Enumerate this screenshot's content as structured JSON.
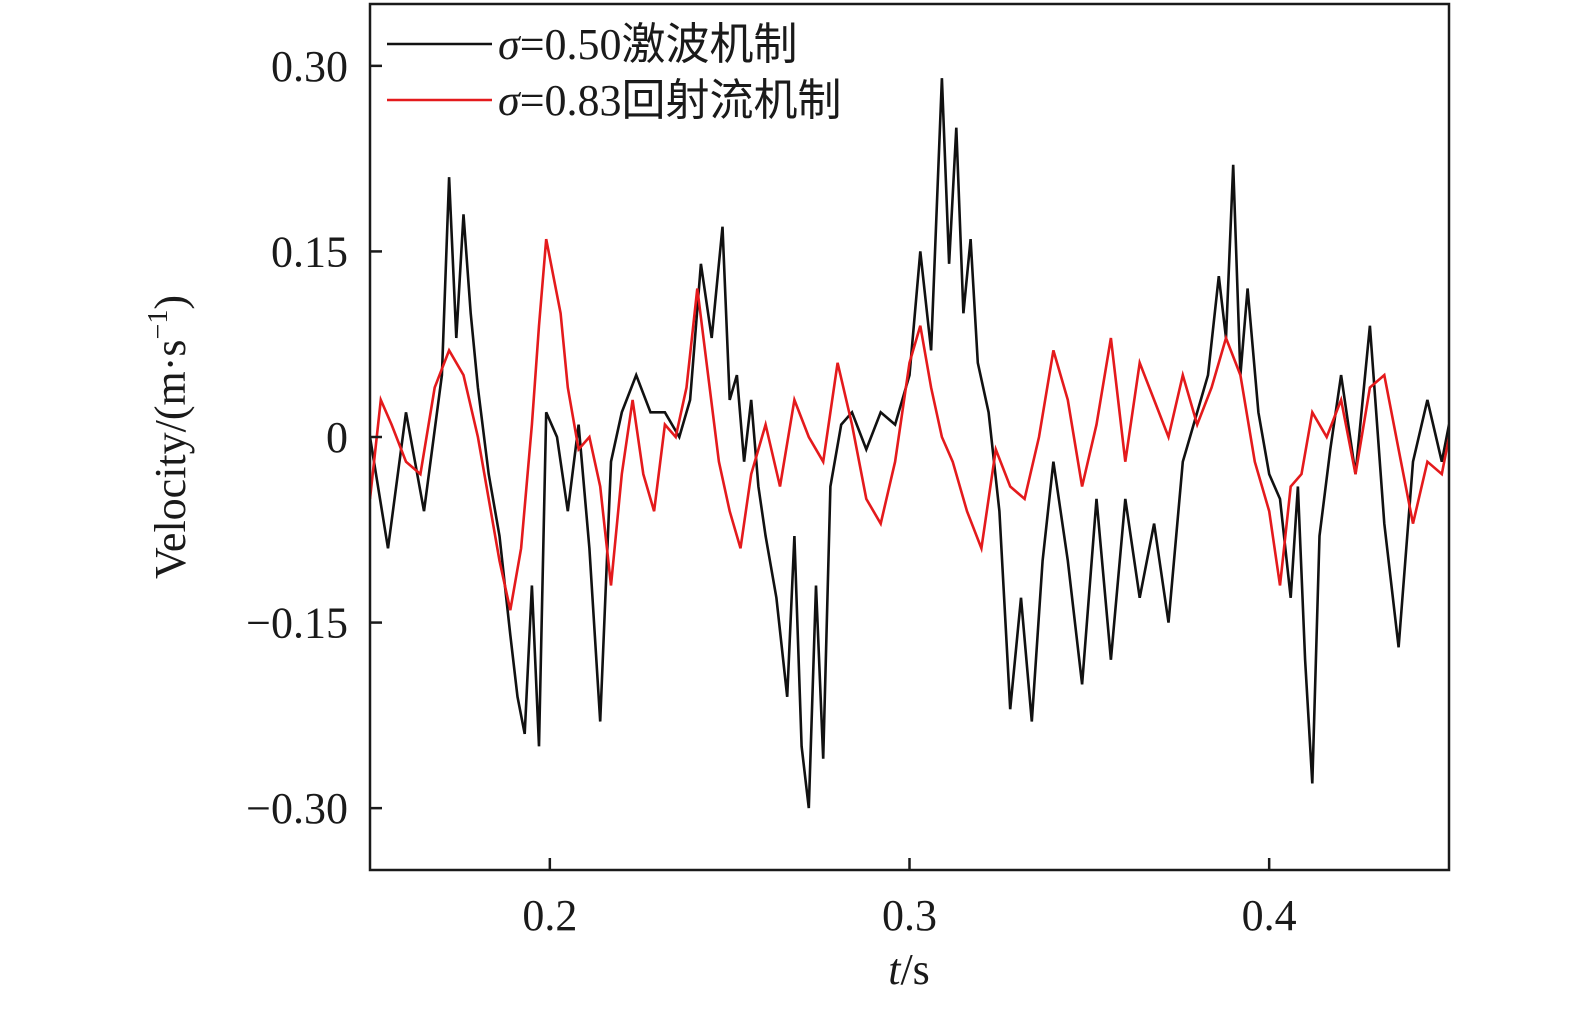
{
  "chart_data": {
    "type": "line",
    "xlabel": {
      "italic": "t",
      "rest": "/s"
    },
    "ylabel": {
      "main": "Velocity/(m·s",
      "sup": "−1",
      "close": ")"
    },
    "xlim": [
      0.15,
      0.45
    ],
    "ylim": [
      -0.35,
      0.35
    ],
    "x_ticks": [
      {
        "value": 0.2,
        "label": "0.2"
      },
      {
        "value": 0.3,
        "label": "0.3"
      },
      {
        "value": 0.4,
        "label": "0.4"
      }
    ],
    "y_ticks": [
      {
        "value": 0.3,
        "label": "0.30"
      },
      {
        "value": 0.15,
        "label": "0.15"
      },
      {
        "value": 0,
        "label": "0"
      },
      {
        "value": -0.15,
        "label": "−0.15"
      },
      {
        "value": -0.3,
        "label": "−0.30"
      }
    ],
    "grid": false,
    "legend_position": "top-left",
    "series": [
      {
        "name": "σ=0.50激波机制",
        "legend_symbol": "σ",
        "legend_text": "=0.50激波机制",
        "color": "#111111",
        "x": [
          0.15,
          0.155,
          0.16,
          0.165,
          0.17,
          0.172,
          0.174,
          0.176,
          0.178,
          0.18,
          0.183,
          0.186,
          0.189,
          0.191,
          0.193,
          0.195,
          0.197,
          0.199,
          0.202,
          0.205,
          0.208,
          0.211,
          0.214,
          0.217,
          0.22,
          0.224,
          0.228,
          0.232,
          0.236,
          0.239,
          0.242,
          0.245,
          0.248,
          0.25,
          0.252,
          0.254,
          0.256,
          0.258,
          0.26,
          0.263,
          0.266,
          0.268,
          0.27,
          0.272,
          0.274,
          0.276,
          0.278,
          0.281,
          0.284,
          0.288,
          0.292,
          0.296,
          0.3,
          0.303,
          0.306,
          0.309,
          0.311,
          0.313,
          0.315,
          0.317,
          0.319,
          0.322,
          0.325,
          0.328,
          0.331,
          0.334,
          0.337,
          0.34,
          0.344,
          0.348,
          0.352,
          0.356,
          0.36,
          0.364,
          0.368,
          0.372,
          0.376,
          0.38,
          0.383,
          0.386,
          0.388,
          0.39,
          0.392,
          0.394,
          0.397,
          0.4,
          0.403,
          0.406,
          0.408,
          0.41,
          0.412,
          0.414,
          0.417,
          0.42,
          0.424,
          0.428,
          0.432,
          0.436,
          0.44,
          0.444,
          0.448,
          0.45
        ],
        "y": [
          0.0,
          -0.09,
          0.02,
          -0.06,
          0.05,
          0.21,
          0.08,
          0.18,
          0.1,
          0.04,
          -0.03,
          -0.08,
          -0.16,
          -0.21,
          -0.24,
          -0.12,
          -0.25,
          0.02,
          0.0,
          -0.06,
          0.01,
          -0.09,
          -0.23,
          -0.02,
          0.02,
          0.05,
          0.02,
          0.02,
          0.0,
          0.03,
          0.14,
          0.08,
          0.17,
          0.03,
          0.05,
          -0.02,
          0.03,
          -0.04,
          -0.08,
          -0.13,
          -0.21,
          -0.08,
          -0.25,
          -0.3,
          -0.12,
          -0.26,
          -0.04,
          0.01,
          0.02,
          -0.01,
          0.02,
          0.01,
          0.05,
          0.15,
          0.07,
          0.29,
          0.14,
          0.25,
          0.1,
          0.16,
          0.06,
          0.02,
          -0.06,
          -0.22,
          -0.13,
          -0.23,
          -0.1,
          -0.02,
          -0.1,
          -0.2,
          -0.05,
          -0.18,
          -0.05,
          -0.13,
          -0.07,
          -0.15,
          -0.02,
          0.02,
          0.05,
          0.13,
          0.08,
          0.22,
          0.05,
          0.12,
          0.02,
          -0.03,
          -0.05,
          -0.13,
          -0.04,
          -0.18,
          -0.28,
          -0.08,
          -0.01,
          0.05,
          -0.03,
          0.09,
          -0.07,
          -0.17,
          -0.02,
          0.03,
          -0.02,
          0.01
        ]
      },
      {
        "name": "σ=0.83回射流机制",
        "legend_symbol": "σ",
        "legend_text": "=0.83回射流机制",
        "color": "#e41a1c",
        "x": [
          0.15,
          0.153,
          0.156,
          0.16,
          0.164,
          0.168,
          0.172,
          0.176,
          0.18,
          0.183,
          0.186,
          0.189,
          0.192,
          0.195,
          0.197,
          0.199,
          0.201,
          0.203,
          0.205,
          0.208,
          0.211,
          0.214,
          0.217,
          0.22,
          0.223,
          0.226,
          0.229,
          0.232,
          0.235,
          0.238,
          0.241,
          0.244,
          0.247,
          0.25,
          0.253,
          0.256,
          0.26,
          0.264,
          0.268,
          0.272,
          0.276,
          0.28,
          0.284,
          0.288,
          0.292,
          0.296,
          0.3,
          0.303,
          0.306,
          0.309,
          0.312,
          0.316,
          0.32,
          0.324,
          0.328,
          0.332,
          0.336,
          0.34,
          0.344,
          0.348,
          0.352,
          0.356,
          0.36,
          0.364,
          0.368,
          0.372,
          0.376,
          0.38,
          0.384,
          0.388,
          0.392,
          0.396,
          0.4,
          0.403,
          0.406,
          0.409,
          0.412,
          0.416,
          0.42,
          0.424,
          0.428,
          0.432,
          0.436,
          0.44,
          0.444,
          0.448,
          0.45
        ],
        "y": [
          -0.05,
          0.03,
          0.01,
          -0.02,
          -0.03,
          0.04,
          0.07,
          0.05,
          0.0,
          -0.05,
          -0.1,
          -0.14,
          -0.09,
          0.01,
          0.09,
          0.16,
          0.13,
          0.1,
          0.04,
          -0.01,
          0.0,
          -0.04,
          -0.12,
          -0.03,
          0.03,
          -0.03,
          -0.06,
          0.01,
          0.0,
          0.04,
          0.12,
          0.05,
          -0.02,
          -0.06,
          -0.09,
          -0.03,
          0.01,
          -0.04,
          0.03,
          0.0,
          -0.02,
          0.06,
          0.01,
          -0.05,
          -0.07,
          -0.02,
          0.06,
          0.09,
          0.04,
          0.0,
          -0.02,
          -0.06,
          -0.09,
          -0.01,
          -0.04,
          -0.05,
          0.0,
          0.07,
          0.03,
          -0.04,
          0.01,
          0.08,
          -0.02,
          0.06,
          0.03,
          0.0,
          0.05,
          0.01,
          0.04,
          0.08,
          0.05,
          -0.02,
          -0.06,
          -0.12,
          -0.04,
          -0.03,
          0.02,
          0.0,
          0.03,
          -0.03,
          0.04,
          0.05,
          -0.01,
          -0.07,
          -0.02,
          -0.03,
          0.0
        ]
      }
    ]
  }
}
